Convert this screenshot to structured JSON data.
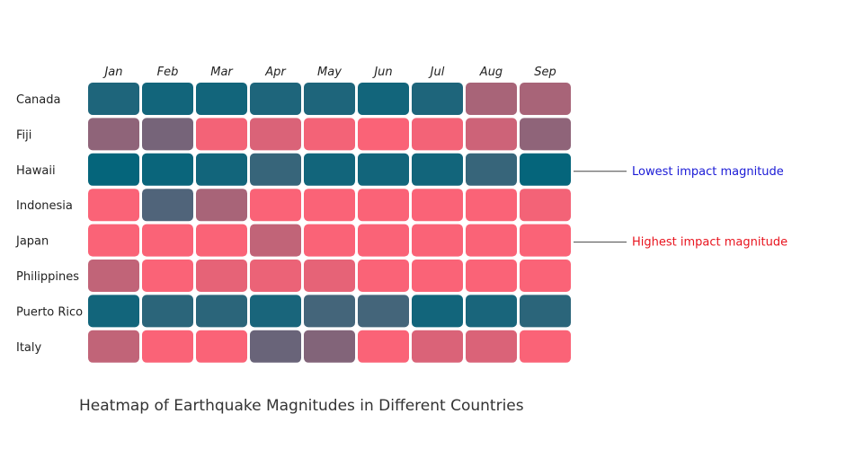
{
  "chart_data": {
    "type": "heatmap",
    "title": "Heatmap of Earthquake Magnitudes in Different Countries",
    "x": [
      "Jan",
      "Feb",
      "Mar",
      "Apr",
      "May",
      "Jun",
      "Jul",
      "Aug",
      "Sep"
    ],
    "y": [
      "Canada",
      "Fiji",
      "Hawaii",
      "Indonesia",
      "Japan",
      "Philippines",
      "Puerto Rico",
      "Italy"
    ],
    "values": [
      [
        0.1,
        0.05,
        0.05,
        0.1,
        0.1,
        0.05,
        0.1,
        0.65,
        0.65
      ],
      [
        0.55,
        0.45,
        0.95,
        0.85,
        0.95,
        0.98,
        0.95,
        0.8,
        0.55
      ],
      [
        0.0,
        0.02,
        0.05,
        0.2,
        0.05,
        0.05,
        0.05,
        0.2,
        0.0
      ],
      [
        0.98,
        0.3,
        0.65,
        0.98,
        0.98,
        0.98,
        0.98,
        0.98,
        0.95
      ],
      [
        0.98,
        0.98,
        0.98,
        0.75,
        0.98,
        0.98,
        0.98,
        0.98,
        0.98
      ],
      [
        0.75,
        0.98,
        0.9,
        0.92,
        0.9,
        0.98,
        0.98,
        0.98,
        0.98
      ],
      [
        0.05,
        0.15,
        0.15,
        0.08,
        0.25,
        0.25,
        0.05,
        0.08,
        0.15
      ],
      [
        0.75,
        0.98,
        0.98,
        0.4,
        0.5,
        0.98,
        0.85,
        0.85,
        0.98
      ]
    ],
    "color_scale": {
      "low": "#05657b",
      "high": "#ff6377"
    },
    "annotations": [
      {
        "text": "Lowest impact magnitude",
        "row": "Hawaii",
        "color": "#1a1ad6"
      },
      {
        "text": "Highest impact magnitude",
        "row": "Japan",
        "color": "#e8141e"
      }
    ],
    "grid": false,
    "legend": "none"
  }
}
